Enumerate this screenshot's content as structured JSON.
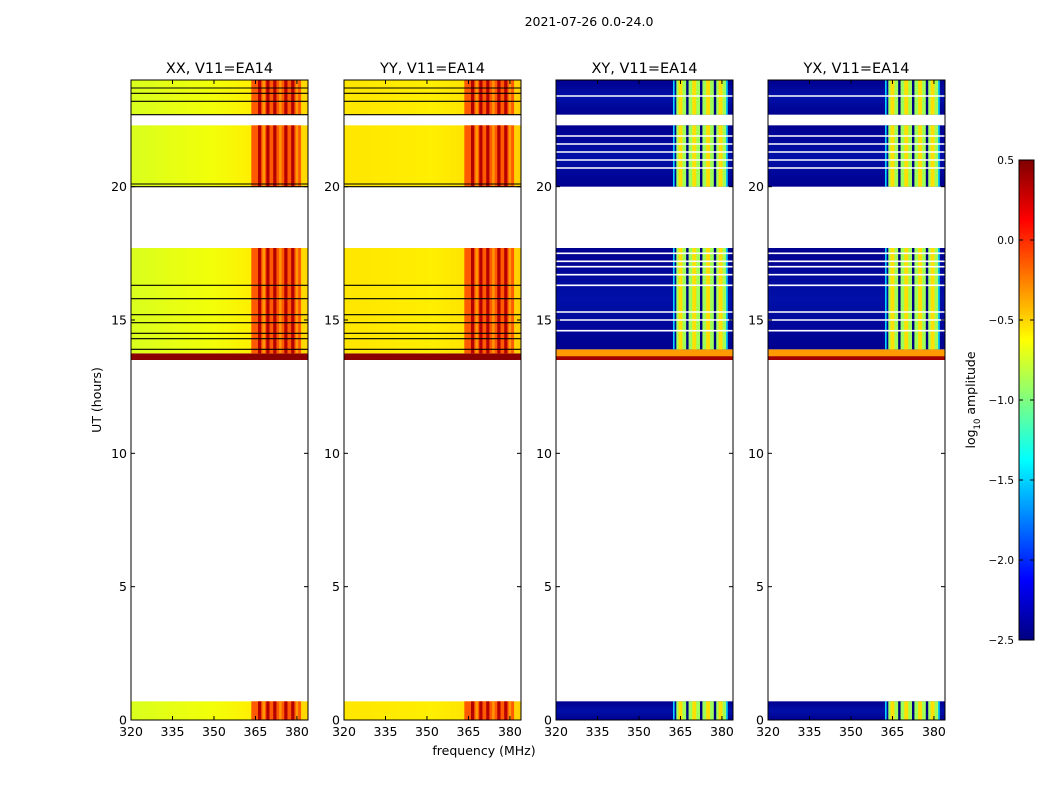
{
  "figure_title": "2021-07-26 0.0-24.0",
  "chart_data": [
    {
      "type": "heatmap",
      "title": "XX, V11=EA14",
      "ylabel": "UT (hours)",
      "xlabel": "",
      "x_ticks": [
        320,
        335,
        350,
        365,
        380
      ],
      "y_ticks": [
        0,
        5,
        10,
        15,
        20
      ],
      "xlim": [
        320,
        384
      ],
      "ylim": [
        0,
        24
      ],
      "bands": [
        {
          "t0": 0.0,
          "t1": 0.7,
          "fill": "yellow",
          "rfi": true
        },
        {
          "t0": 13.5,
          "t1": 13.75,
          "fill": "darkred_edge",
          "rfi": false
        },
        {
          "t0": 13.75,
          "t1": 17.7,
          "fill": "yellow",
          "rfi": true
        },
        {
          "t0": 20.0,
          "t1": 22.3,
          "fill": "yellow",
          "rfi": true
        },
        {
          "t0": 22.7,
          "t1": 24.0,
          "fill": "yellow",
          "rfi": true
        }
      ],
      "lines": [
        13.9,
        14.3,
        14.5,
        14.9,
        15.2,
        15.8,
        16.3,
        20.0,
        20.1,
        22.7,
        23.2,
        23.5,
        23.7
      ]
    },
    {
      "type": "heatmap",
      "title": "YY, V11=EA14",
      "ylabel": "",
      "xlabel": "frequency (MHz)",
      "x_ticks": [
        320,
        335,
        350,
        365,
        380
      ],
      "y_ticks": [
        0,
        5,
        10,
        15,
        20
      ],
      "xlim": [
        320,
        384
      ],
      "ylim": [
        0,
        24
      ],
      "bands": [
        {
          "t0": 0.0,
          "t1": 0.7,
          "fill": "yellow",
          "rfi": true
        },
        {
          "t0": 13.5,
          "t1": 13.75,
          "fill": "darkred_edge",
          "rfi": false
        },
        {
          "t0": 13.75,
          "t1": 17.7,
          "fill": "yellow",
          "rfi": true
        },
        {
          "t0": 20.0,
          "t1": 22.3,
          "fill": "yellow",
          "rfi": true
        },
        {
          "t0": 22.7,
          "t1": 24.0,
          "fill": "yellow",
          "rfi": true
        }
      ],
      "lines": [
        13.9,
        14.3,
        14.5,
        14.9,
        15.2,
        15.8,
        16.3,
        20.0,
        20.1,
        22.7,
        23.2,
        23.5,
        23.7
      ]
    },
    {
      "type": "heatmap",
      "title": "XY, V11=EA14",
      "ylabel": "",
      "xlabel": "",
      "x_ticks": [
        320,
        335,
        350,
        365,
        380
      ],
      "y_ticks": [
        0,
        5,
        10,
        15,
        20
      ],
      "xlim": [
        320,
        384
      ],
      "ylim": [
        0,
        24
      ],
      "bands": [
        {
          "t0": 0.0,
          "t1": 0.7,
          "fill": "blue",
          "rfi": true
        },
        {
          "t0": 13.5,
          "t1": 13.9,
          "fill": "orange_edge",
          "rfi": false
        },
        {
          "t0": 13.9,
          "t1": 17.7,
          "fill": "blue",
          "rfi": true
        },
        {
          "t0": 20.0,
          "t1": 22.3,
          "fill": "blue",
          "rfi": true
        },
        {
          "t0": 22.7,
          "t1": 24.0,
          "fill": "blue",
          "rfi": true
        }
      ],
      "lines": [
        14.6,
        15.0,
        15.3,
        16.3,
        16.7,
        17.0,
        17.2,
        17.5,
        20.7,
        21.0,
        21.3,
        21.6,
        21.9,
        23.4
      ]
    },
    {
      "type": "heatmap",
      "title": "YX, V11=EA14",
      "ylabel": "",
      "xlabel": "",
      "x_ticks": [
        320,
        335,
        350,
        365,
        380
      ],
      "y_ticks": [
        0,
        5,
        10,
        15,
        20
      ],
      "xlim": [
        320,
        384
      ],
      "ylim": [
        0,
        24
      ],
      "bands": [
        {
          "t0": 0.0,
          "t1": 0.7,
          "fill": "blue",
          "rfi": true
        },
        {
          "t0": 13.5,
          "t1": 13.9,
          "fill": "orange_edge",
          "rfi": false
        },
        {
          "t0": 13.9,
          "t1": 17.7,
          "fill": "blue",
          "rfi": true
        },
        {
          "t0": 20.0,
          "t1": 22.3,
          "fill": "blue",
          "rfi": true
        },
        {
          "t0": 22.7,
          "t1": 24.0,
          "fill": "blue",
          "rfi": true
        }
      ],
      "lines": [
        14.6,
        15.0,
        15.3,
        16.3,
        16.7,
        17.0,
        17.2,
        17.5,
        20.7,
        21.0,
        21.3,
        21.6,
        21.9,
        23.4
      ]
    }
  ],
  "colorbar": {
    "label_main": "log",
    "label_sub": "10",
    "label_rest": " amplitude",
    "ticks": [
      0.5,
      0.0,
      -0.5,
      -1.0,
      -1.5,
      -2.0,
      -2.5
    ],
    "tick_labels": [
      "0.5",
      "0.0",
      "−0.5",
      "−1.0",
      "−1.5",
      "−2.0",
      "−2.5"
    ],
    "range": [
      -2.5,
      0.5
    ],
    "colors": [
      "#00007f",
      "#0000ff",
      "#007fff",
      "#00ffff",
      "#7fff7f",
      "#ffff00",
      "#ff7f00",
      "#ff0000",
      "#7f0000"
    ]
  }
}
